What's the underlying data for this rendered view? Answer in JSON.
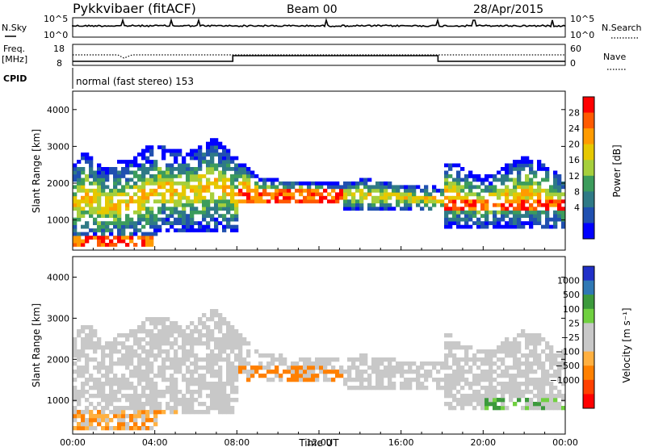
{
  "header": {
    "station": "Pykkvibaer (fitACF)",
    "beam": "Beam 00",
    "date": "28/Apr/2015"
  },
  "noise_panel": {
    "left_label": "N.Sky",
    "right_label": "N.Search",
    "ticks_left": [
      "10^5",
      "10^0"
    ],
    "ticks_right": [
      "10^5",
      "10^0"
    ]
  },
  "freq_panel": {
    "left_label": "Freq.",
    "left_unit": "[MHz]",
    "right_label": "Nave",
    "ticks_left": [
      "18",
      "8"
    ],
    "ticks_right": [
      "60",
      "0"
    ]
  },
  "cpid": {
    "label": "CPID",
    "mode": "normal (fast stereo) 153"
  },
  "chart_data": [
    {
      "type": "heatmap",
      "name": "power",
      "ylabel": "Slant Range [km]",
      "ylim": [
        180,
        4500
      ],
      "yticks": [
        1000,
        2000,
        3000,
        4000
      ],
      "xlim": [
        0,
        24
      ],
      "xticks": [
        "00:00",
        "04:00",
        "08:00",
        "12:00",
        "16:00",
        "20:00",
        "00:00"
      ],
      "colorbar": {
        "label": "Power [dB]",
        "ticks": [
          "28",
          "24",
          "20",
          "16",
          "12",
          "8",
          "4"
        ],
        "colors": [
          "#ff0000",
          "#ff5a00",
          "#ff9b00",
          "#e6c800",
          "#a6cf3c",
          "#3c9c5c",
          "#2f7a86",
          "#2050b0",
          "#0000ff"
        ]
      }
    },
    {
      "type": "heatmap",
      "name": "velocity",
      "ylabel": "Slant Range [km]",
      "ylim": [
        180,
        4500
      ],
      "yticks": [
        1000,
        2000,
        3000,
        4000
      ],
      "xlim": [
        0,
        24
      ],
      "xticks": [
        "00:00",
        "04:00",
        "08:00",
        "12:00",
        "16:00",
        "20:00",
        "00:00"
      ],
      "xlabel": "Time UT",
      "colorbar": {
        "label": "Velocity [m s⁻¹]",
        "ticks": [
          "1000",
          "500",
          "100",
          "25",
          "−25",
          "−100",
          "−500",
          "−1000"
        ],
        "colors": [
          "#2030c8",
          "#2f78b4",
          "#3c9a3c",
          "#70d040",
          "#c8c8c8",
          "#c8c8c8",
          "#ffb040",
          "#ff8000",
          "#ff4000",
          "#ff0000"
        ]
      }
    }
  ]
}
